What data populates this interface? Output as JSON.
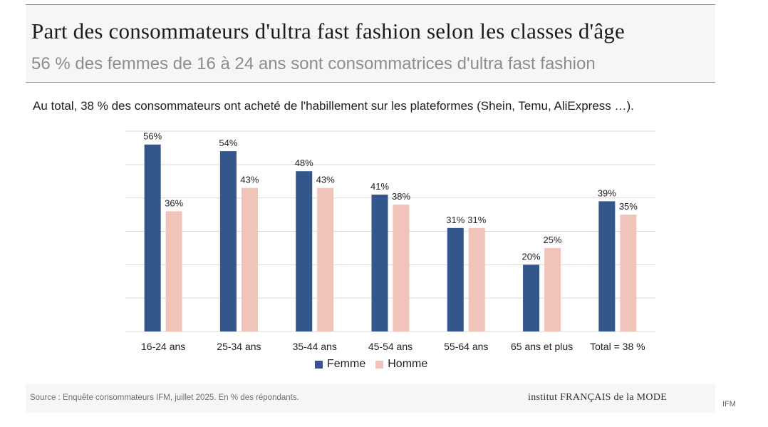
{
  "header": {
    "title": "Part des consommateurs d'ultra fast fashion selon les classes d'âge",
    "subtitle": "56 % des femmes de 16 à 24 ans sont consommatrices d'ultra fast fashion"
  },
  "summary": "Au total, 38 % des consommateurs ont acheté de l'habillement sur les plateformes (Shein, Temu, AliExpress …).",
  "colors": {
    "femme": "#33578a",
    "homme": "#f0c4b8",
    "grid": "#d9d9d9"
  },
  "chart_data": {
    "type": "bar",
    "title": "Au total, 38 % des consommateurs ont acheté de l'habillement sur les plateformes (Shein, Temu, AliExpress …).",
    "xlabel": "",
    "ylabel": "",
    "ylim": [
      0,
      60
    ],
    "grid": true,
    "legend_position": "bottom-center",
    "categories": [
      "16-24 ans",
      "25-34 ans",
      "35-44 ans",
      "45-54 ans",
      "55-64 ans",
      "65 ans et plus",
      "Total = 38 %"
    ],
    "series": [
      {
        "name": "Femme",
        "values": [
          56,
          54,
          48,
          41,
          31,
          20,
          39
        ],
        "labels": [
          "56%",
          "54%",
          "48%",
          "41%",
          "31%",
          "20%",
          "39%"
        ]
      },
      {
        "name": "Homme",
        "values": [
          36,
          43,
          43,
          38,
          31,
          25,
          35
        ],
        "labels": [
          "36%",
          "43%",
          "43%",
          "38%",
          "31%",
          "25%",
          "35%"
        ]
      }
    ]
  },
  "legend": {
    "femme": "Femme",
    "homme": "Homme"
  },
  "footer": {
    "source": "Source : Enquête consommateurs IFM, juillet 2025. En % des répondants.",
    "logo": "institut FRANÇAIS de la MODE",
    "corner": "IFM"
  }
}
